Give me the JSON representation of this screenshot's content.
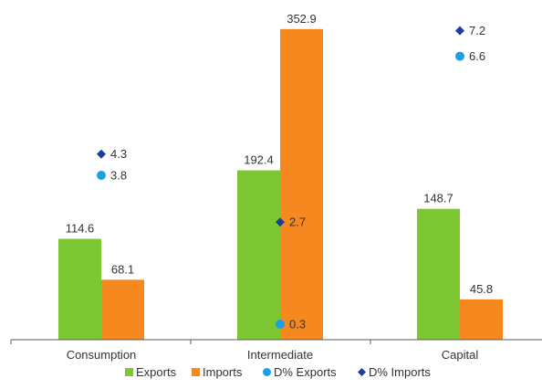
{
  "chart_data": {
    "type": "bar",
    "categories": [
      "Consumption",
      "Intermediate",
      "Capital"
    ],
    "series": [
      {
        "name": "Exports",
        "kind": "bar",
        "values": [
          114.6,
          192.4,
          148.7
        ],
        "color": "#7dc832"
      },
      {
        "name": "Imports",
        "kind": "bar",
        "values": [
          68.1,
          352.9,
          45.8
        ],
        "color": "#f5881f"
      },
      {
        "name": "D% Exports",
        "kind": "marker",
        "marker": "circle",
        "values": [
          3.8,
          0.3,
          6.6
        ],
        "color": "#1aa0e6"
      },
      {
        "name": "D% Imports",
        "kind": "marker",
        "marker": "diamond",
        "values": [
          4.3,
          2.7,
          7.2
        ],
        "color": "#1a3f9a"
      }
    ],
    "bar_ylim": [
      0,
      360
    ],
    "marker_ylim": [
      0,
      7.45
    ],
    "title": "",
    "xlabel": "",
    "ylabel": "",
    "legend": "bottom",
    "grid": false,
    "text_color": "#333333",
    "axis_color": "#595959"
  }
}
